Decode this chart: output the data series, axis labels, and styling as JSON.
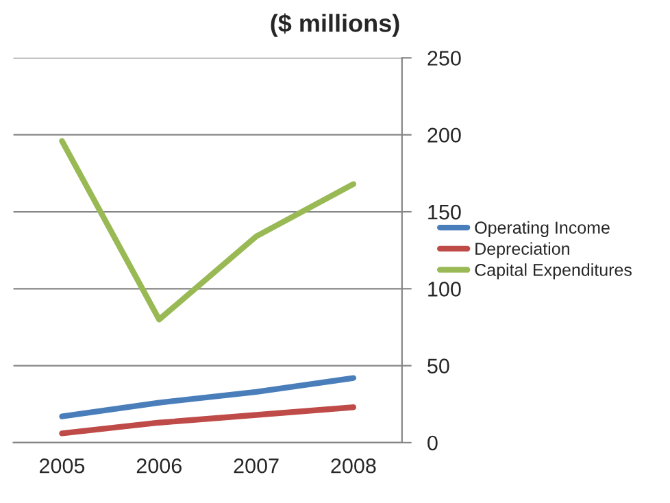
{
  "chart_data": {
    "type": "line",
    "title": "($ millions)",
    "categories": [
      "2005",
      "2006",
      "2007",
      "2008"
    ],
    "series": [
      {
        "name": "Operating Income",
        "color": "#4a7ebb",
        "values": [
          17,
          26,
          33,
          42
        ]
      },
      {
        "name": "Depreciation",
        "color": "#be4b48",
        "values": [
          6,
          13,
          18,
          23
        ]
      },
      {
        "name": "Capital Expenditures",
        "color": "#98b954",
        "values": [
          196,
          80,
          134,
          168
        ]
      }
    ],
    "ylim": [
      0,
      250
    ],
    "yticks": [
      0,
      50,
      100,
      150,
      200,
      250
    ],
    "grid": "y",
    "legend": "right",
    "marker": "none",
    "line_style": "solid"
  }
}
